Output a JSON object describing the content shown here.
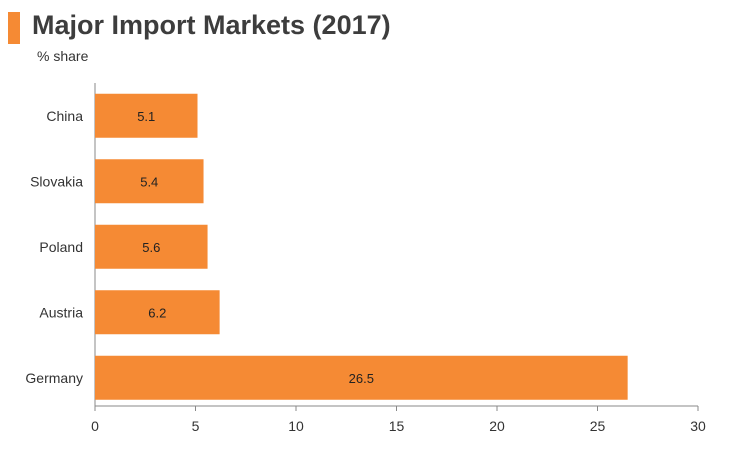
{
  "header": {
    "title": "Major Import Markets (2017)",
    "subtitle": "% share"
  },
  "colors": {
    "bar": "#f58a34",
    "accent": "#f58a34",
    "axis": "#888888",
    "label_text": "#222222"
  },
  "chart_data": {
    "type": "bar",
    "orientation": "horizontal",
    "title": "Major Import Markets (2017)",
    "subtitle": "% share",
    "categories": [
      "China",
      "Slovakia",
      "Poland",
      "Austria",
      "Germany"
    ],
    "values": [
      5.1,
      5.4,
      5.6,
      6.2,
      26.5
    ],
    "data_labels": [
      "5.1",
      "5.4",
      "5.6",
      "6.2",
      "26.5"
    ],
    "xlim": [
      0,
      30
    ],
    "x_ticks": [
      0,
      5,
      10,
      15,
      20,
      25,
      30
    ],
    "grid": false,
    "legend": "none"
  }
}
